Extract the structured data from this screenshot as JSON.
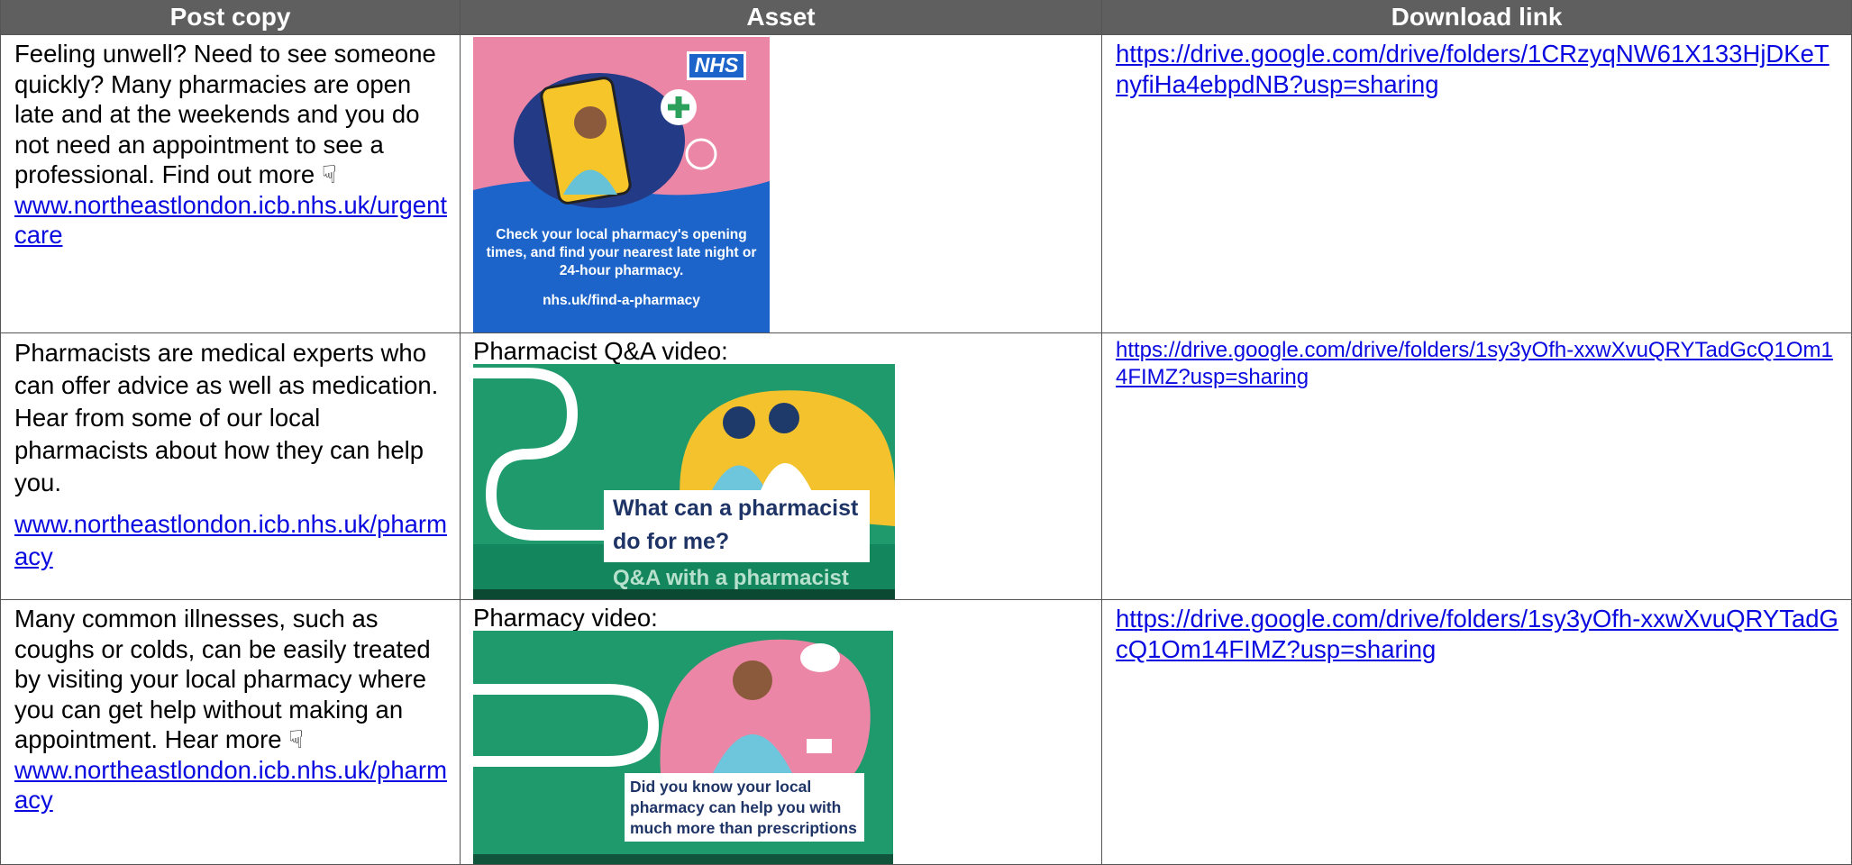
{
  "table": {
    "headers": [
      "Post copy",
      "Asset",
      "Download link"
    ],
    "rows": [
      {
        "post_copy": "Feeling unwell? Need to see someone quickly? Many pharmacies are open late and at the weekends and you do not need an appointment to see a professional. Find out more ☟",
        "post_link": "www.northeastlondon.icb.nhs.uk/urgentcare",
        "asset_logo": "NHS",
        "asset_text": "Check your local pharmacy's opening times, and find your nearest late night or 24-hour pharmacy.",
        "asset_url": "nhs.uk/find-a-pharmacy",
        "download_link": "https://drive.google.com/drive/folders/1CRzyqNW61X133HjDKeTnyfiHa4ebpdNB?usp=sharing"
      },
      {
        "post_copy": "Pharmacists are medical experts who can offer advice as well as medication. Hear from some of our local pharmacists about how they can help you.",
        "post_link": "www.northeastlondon.icb.nhs.uk/pharmacy",
        "asset_label": "Pharmacist Q&A video:",
        "asset_text": "What can a pharmacist do for me?",
        "asset_subtitle": "Q&A with a pharmacist",
        "download_link": "https://drive.google.com/drive/folders/1sy3yOfh-xxwXvuQRYTadGcQ1Om14FIMZ?usp=sharing"
      },
      {
        "post_copy": "Many common illnesses, such as coughs or colds, can be easily treated by visiting your local pharmacy where you can get help without making an appointment. Hear more ☟",
        "post_link": "www.northeastlondon.icb.nhs.uk/pharmacy",
        "asset_label": "Pharmacy video:",
        "asset_text": "Did you know your local pharmacy can help you with much more than prescriptions",
        "download_link": "https://drive.google.com/drive/folders/1sy3yOfh-xxwXvuQRYTadGcQ1Om14FIMZ?usp=sharing"
      }
    ]
  }
}
